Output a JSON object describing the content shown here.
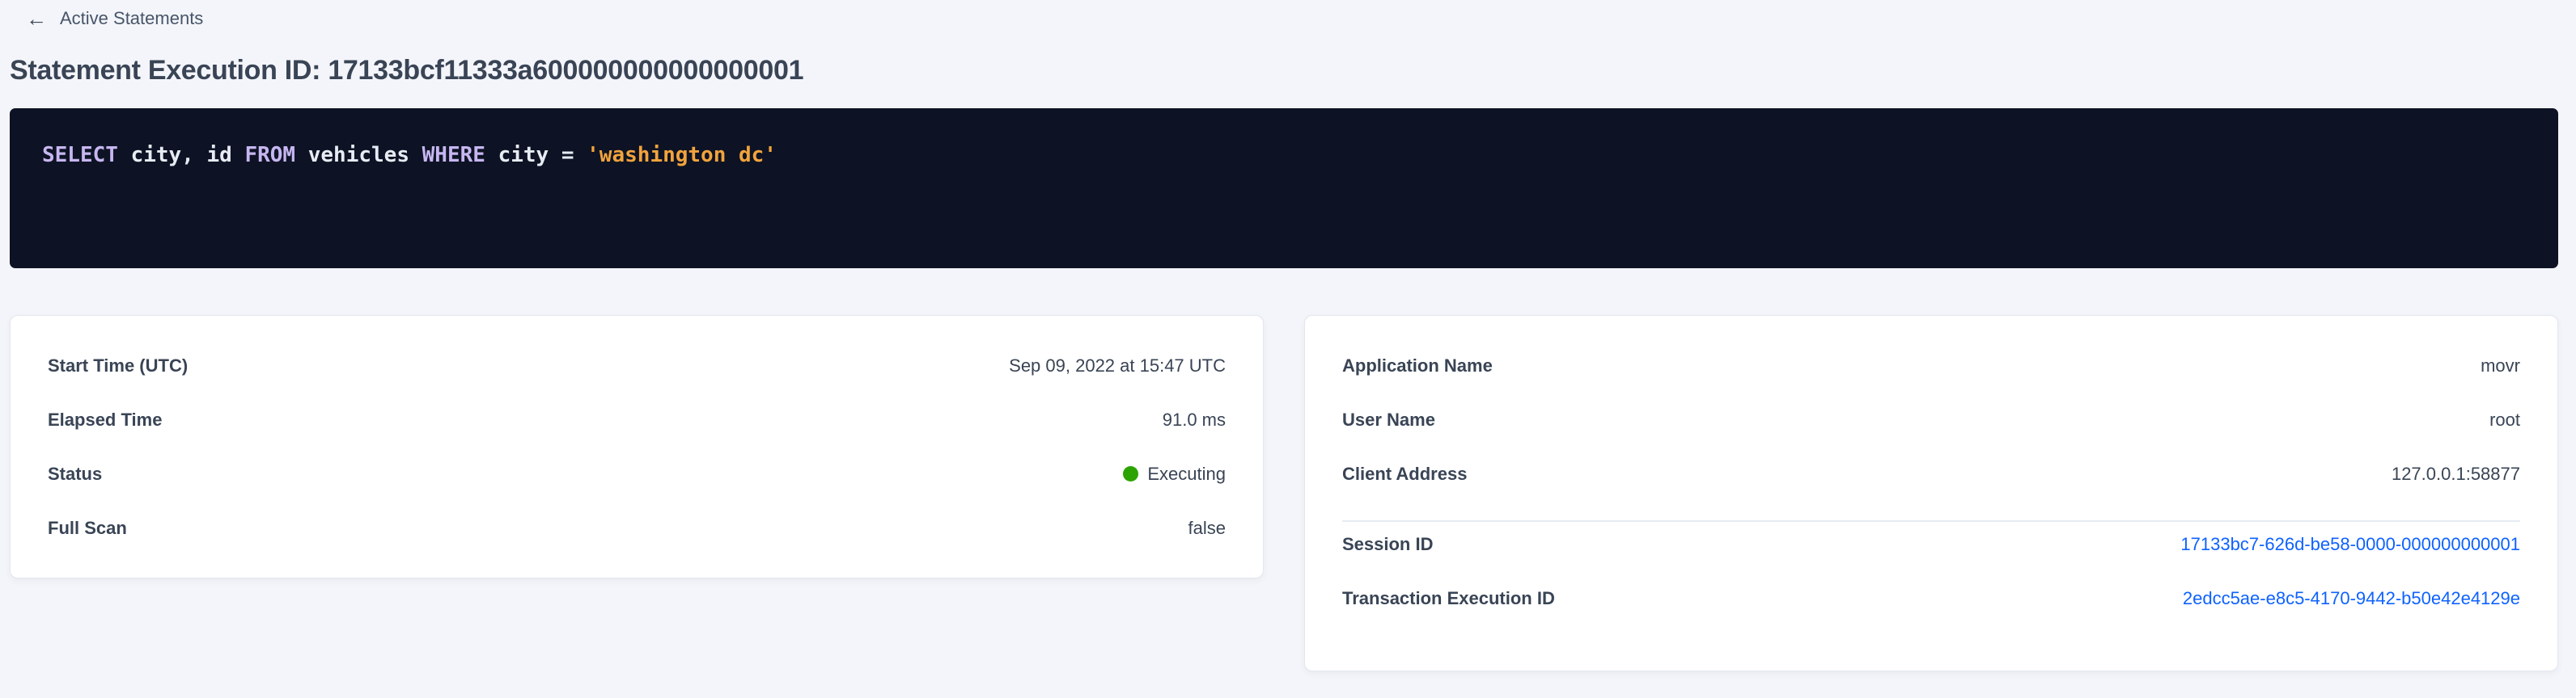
{
  "colors": {
    "page_bg": "#f4f5fa",
    "card_bg": "#ffffff",
    "card_border": "#e3e7ef",
    "text_primary": "#394455",
    "breadcrumb": "#475569",
    "link_blue": "#0e62ff",
    "status_green": "#2ba300",
    "code_bg": "#0d1324",
    "code_keyword": "#c7b6f1",
    "code_plain": "#e7ecf4",
    "code_string": "#f2a33c"
  },
  "icons": {
    "back_arrow": "←",
    "status_dot": "executing-green-dot"
  },
  "breadcrumb": {
    "label": "Active Statements"
  },
  "header": {
    "title": "Statement Execution ID: 17133bcf11333a600000000000000001"
  },
  "sql_query": {
    "full_text": "SELECT city, id FROM vehicles WHERE city = 'washington dc'",
    "tokens": [
      {
        "type": "keyword",
        "text": "SELECT"
      },
      {
        "type": "plain",
        "text": " city, id "
      },
      {
        "type": "keyword",
        "text": "FROM"
      },
      {
        "type": "plain",
        "text": " vehicles "
      },
      {
        "type": "keyword",
        "text": "WHERE"
      },
      {
        "type": "plain",
        "text": " city = "
      },
      {
        "type": "string",
        "text": "'washington dc'"
      }
    ]
  },
  "details_left": {
    "rows": [
      {
        "label": "Start Time (UTC)",
        "value": "Sep 09, 2022 at 15:47 UTC"
      },
      {
        "label": "Elapsed Time",
        "value": "91.0 ms"
      },
      {
        "label": "Status",
        "value": "Executing"
      },
      {
        "label": "Full Scan",
        "value": "false"
      }
    ]
  },
  "details_right": {
    "rows_top": [
      {
        "label": "Application Name",
        "value": "movr"
      },
      {
        "label": "User Name",
        "value": "root"
      },
      {
        "label": "Client Address",
        "value": "127.0.0.1:58877"
      }
    ],
    "rows_links": [
      {
        "label": "Session ID",
        "value": "17133bc7-626d-be58-0000-000000000001"
      },
      {
        "label": "Transaction Execution ID",
        "value": "2edcc5ae-e8c5-4170-9442-b50e42e4129e"
      }
    ]
  }
}
